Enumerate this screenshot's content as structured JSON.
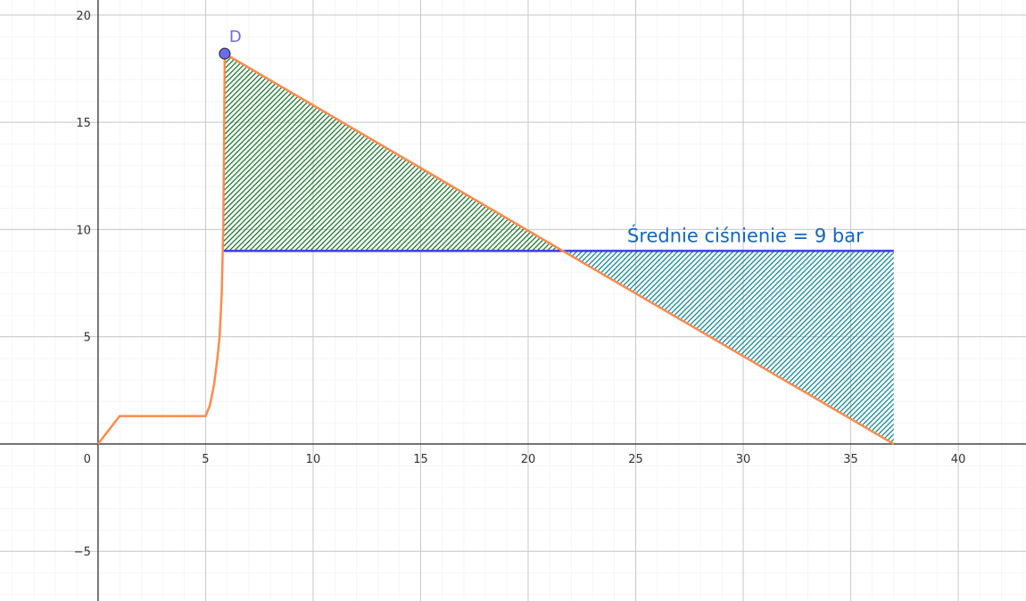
{
  "chart_data": {
    "type": "line",
    "xlim": [
      -4.56,
      43.15
    ],
    "ylim": [
      -7.32,
      20.7
    ],
    "xticks": [
      0,
      5,
      10,
      15,
      20,
      25,
      30,
      35,
      40
    ],
    "yticks": [
      {
        "value": -5,
        "label": "−5"
      },
      5,
      10,
      15,
      20
    ],
    "grid": true,
    "curve": {
      "color": "#ff8a4c",
      "x": [
        0,
        1,
        5,
        5.2,
        5.4,
        5.55,
        5.65,
        5.75,
        5.82,
        5.86,
        5.89,
        37
      ],
      "y": [
        0,
        1.3,
        1.3,
        1.8,
        2.8,
        4,
        5,
        7,
        10,
        14,
        18.2,
        0
      ]
    },
    "mean_line": {
      "color": "#3b3bf0",
      "x": [
        5.81,
        37
      ],
      "y": [
        9,
        9
      ]
    },
    "regions": [
      {
        "color": "#0b6e1f",
        "x": [
          5.82,
          5.89,
          21.62
        ],
        "y": [
          9,
          18.2,
          9
        ]
      },
      {
        "color": "#00808f",
        "x": [
          21.62,
          37,
          37
        ],
        "y": [
          9,
          9,
          0
        ]
      }
    ],
    "point": {
      "label": "D",
      "x": 5.89,
      "y": 18.2,
      "color": "#6b6bf0"
    },
    "annotation": {
      "text": "Średnie ciśnienie = 9 bar",
      "color": "#1565c0"
    }
  }
}
